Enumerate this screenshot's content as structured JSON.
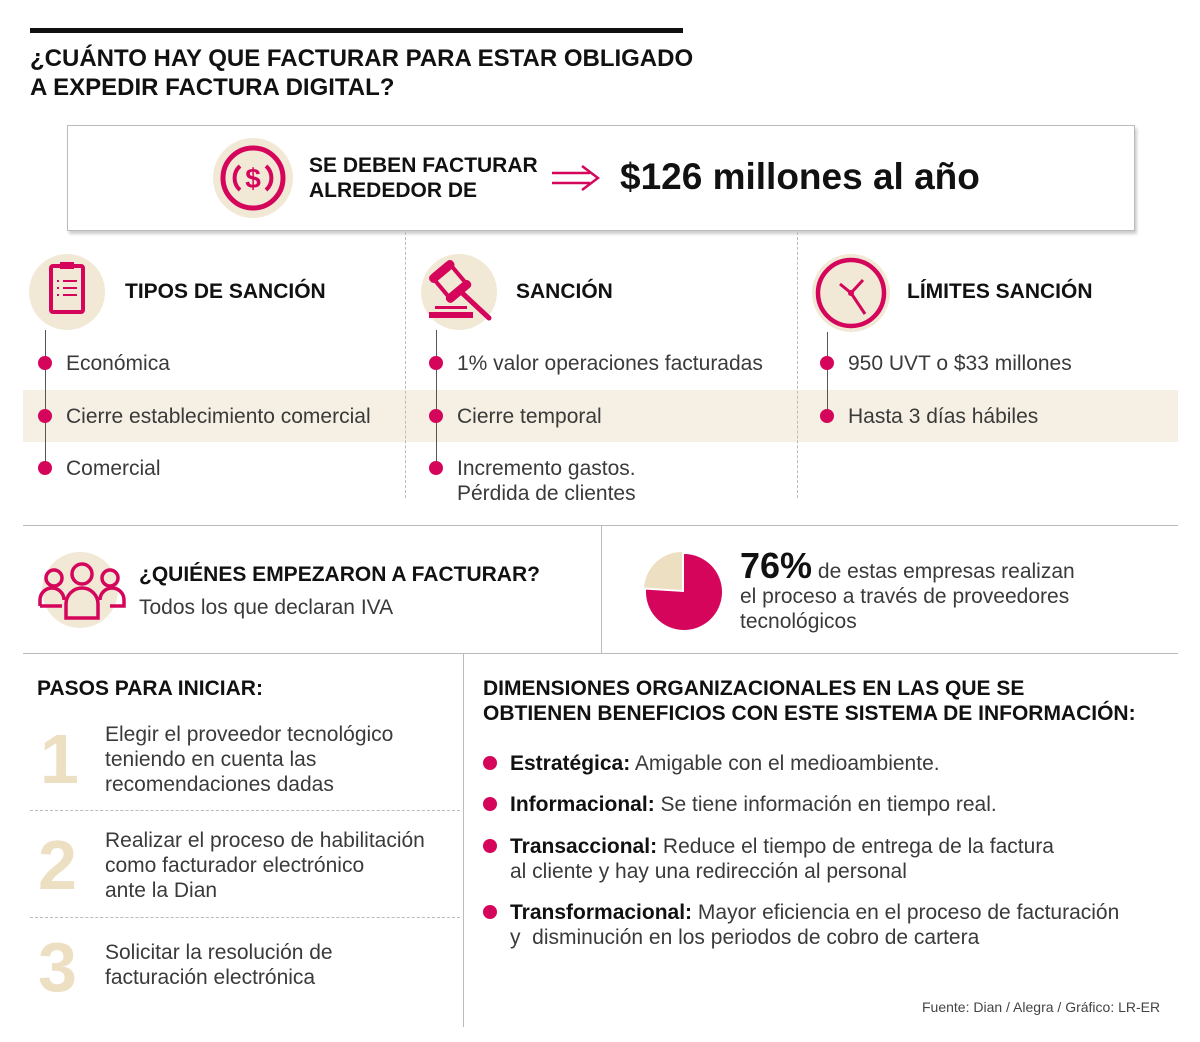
{
  "title": {
    "line1": "¿CUÁNTO HAY QUE FACTURAR PARA ESTAR OBLIGADO",
    "line2": "A EXPEDIR FACTURA DIGITAL?"
  },
  "highlight": {
    "label_line1": "SE DEBEN FACTURAR",
    "label_line2": "ALREDEDOR DE",
    "value": "$126 millones al año",
    "icon": "dollar-coin-icon"
  },
  "columns": [
    {
      "header": "TIPOS DE SANCIÓN",
      "icon": "clipboard-icon",
      "items": [
        "Económica",
        "Cierre establecimiento comercial",
        "Comercial"
      ]
    },
    {
      "header": "SANCIÓN",
      "icon": "gavel-icon",
      "items": [
        "1% valor operaciones facturadas",
        "Cierre temporal",
        "Incremento gastos.",
        "Pérdida de clientes"
      ]
    },
    {
      "header": "LÍMITES SANCIÓN",
      "icon": "clock-icon",
      "items": [
        "950 UVT o $33 millones",
        "Hasta 3 días hábiles"
      ]
    }
  ],
  "who": {
    "question": "¿QUIÉNES EMPEZARON A FACTURAR?",
    "answer": "Todos los que declaran IVA",
    "icon": "people-icon"
  },
  "stat": {
    "percent": "76%",
    "text_line1": "de estas empresas realizan",
    "text_line2": "el proceso a través de proveedores",
    "text_line3": "tecnológicos",
    "value": 76
  },
  "steps": {
    "header": "PASOS PARA INICIAR:",
    "items": [
      {
        "number": "1",
        "lines": [
          "Elegir el proveedor tecnológico",
          "teniendo en cuenta las",
          "recomendaciones dadas"
        ]
      },
      {
        "number": "2",
        "lines": [
          "Realizar el proceso de habilitación",
          "como facturador electrónico",
          "ante la Dian"
        ]
      },
      {
        "number": "3",
        "lines": [
          "Solicitar la resolución de",
          "facturación electrónica"
        ]
      }
    ]
  },
  "dimensions": {
    "header_line1": "DIMENSIONES ORGANIZACIONALES EN LAS QUE SE",
    "header_line2": "OBTIENEN BENEFICIOS CON ESTE SISTEMA DE INFORMACIÓN:",
    "items": [
      {
        "label": "Estratégica:",
        "text": "Amigable con el medioambiente.",
        "text2": ""
      },
      {
        "label": "Informacional:",
        "text": "Se tiene información en tiempo real.",
        "text2": ""
      },
      {
        "label": "Transaccional:",
        "text": "Reduce el tiempo de entrega de la factura",
        "text2": "al cliente y hay una redirección al personal"
      },
      {
        "label": "Transformacional:",
        "text": " Mayor eficiencia en el proceso de facturación",
        "text2": "y  disminución en los periodos de cobro de cartera"
      }
    ]
  },
  "source": "Fuente: Dian / Alegra / Gráfico: LR-ER",
  "colors": {
    "accent": "#d4055a",
    "beige": "#f1e8d6",
    "band": "#f6f0e4"
  }
}
